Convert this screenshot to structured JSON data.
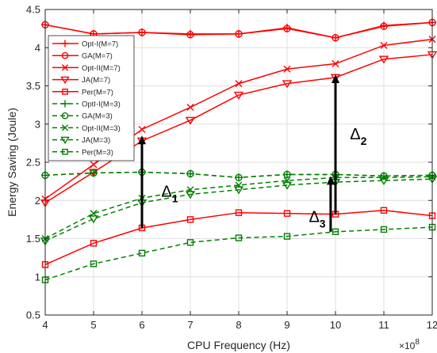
{
  "chart_data": {
    "type": "line",
    "xlabel": "CPU Frequency (Hz)",
    "ylabel": "Energy Saving (Joule)",
    "x_multiplier": "×10",
    "x_multiplier_exp": "8",
    "xlim": [
      4,
      12
    ],
    "ylim": [
      0.5,
      4.5
    ],
    "grid": true,
    "legend_position": "top-left",
    "x": [
      4,
      5,
      6,
      7,
      8,
      9,
      10,
      11,
      12
    ],
    "x_tick_labels": [
      "4",
      "5",
      "6",
      "7",
      "8",
      "9",
      "10",
      "11",
      "12"
    ],
    "y_ticks": [
      0.5,
      1,
      1.5,
      2,
      2.5,
      3,
      3.5,
      4,
      4.5
    ],
    "y_tick_labels": [
      "0.5",
      "1",
      "1.5",
      "2",
      "2.5",
      "3",
      "3.5",
      "4",
      "4.5"
    ],
    "series": [
      {
        "name": "Opt-I(M=7)",
        "color": "#ff0000",
        "dash": "solid",
        "marker": "plus",
        "values": [
          4.3,
          4.18,
          4.2,
          4.18,
          4.18,
          4.26,
          4.13,
          4.29,
          4.33
        ]
      },
      {
        "name": "GA(M=7)",
        "color": "#ff0000",
        "dash": "solid",
        "marker": "circle",
        "values": [
          4.3,
          4.18,
          4.2,
          4.17,
          4.18,
          4.25,
          4.13,
          4.28,
          4.33
        ]
      },
      {
        "name": "Opt-II(M=7)",
        "color": "#ff0000",
        "dash": "solid",
        "marker": "x",
        "values": [
          2.02,
          2.47,
          2.93,
          3.22,
          3.53,
          3.72,
          3.79,
          4.03,
          4.11
        ]
      },
      {
        "name": "JA(M=7)",
        "color": "#ff0000",
        "dash": "solid",
        "marker": "triangle-down",
        "values": [
          1.97,
          2.37,
          2.78,
          3.05,
          3.38,
          3.53,
          3.61,
          3.85,
          3.91
        ]
      },
      {
        "name": "Per(M=7)",
        "color": "#ff0000",
        "dash": "solid",
        "marker": "square",
        "values": [
          1.16,
          1.44,
          1.64,
          1.75,
          1.84,
          1.83,
          1.82,
          1.87,
          1.8
        ]
      },
      {
        "name": "OptI-I(M=3)",
        "color": "#008000",
        "dash": "dashed",
        "marker": "plus",
        "values": [
          2.33,
          2.36,
          2.37,
          2.35,
          2.3,
          2.34,
          2.34,
          2.32,
          2.33
        ]
      },
      {
        "name": "GA(M=3)",
        "color": "#008000",
        "dash": "dashed",
        "marker": "circle",
        "values": [
          2.33,
          2.36,
          2.37,
          2.35,
          2.3,
          2.34,
          2.34,
          2.32,
          2.33
        ]
      },
      {
        "name": "Opt-II(M=3)",
        "color": "#008000",
        "dash": "dashed",
        "marker": "x",
        "values": [
          1.5,
          1.83,
          2.03,
          2.14,
          2.2,
          2.26,
          2.3,
          2.3,
          2.31
        ]
      },
      {
        "name": "JA(M=3)",
        "color": "#008000",
        "dash": "dashed",
        "marker": "triangle-down",
        "values": [
          1.47,
          1.76,
          1.97,
          2.08,
          2.14,
          2.2,
          2.24,
          2.26,
          2.28
        ]
      },
      {
        "name": "Per(M=3)",
        "color": "#008000",
        "dash": "dashed",
        "marker": "square",
        "values": [
          0.96,
          1.17,
          1.31,
          1.45,
          1.51,
          1.53,
          1.59,
          1.62,
          1.65
        ]
      }
    ],
    "annotations": [
      {
        "label": "Δ",
        "subscript": "1",
        "x": 6,
        "y_from": 1.64,
        "y_to": 2.85,
        "label_x": 6.4,
        "label_y": 2.05
      },
      {
        "label": "Δ",
        "subscript": "2",
        "x": 10,
        "y_from": 1.82,
        "y_to": 3.65,
        "label_x": 10.3,
        "label_y": 2.8
      },
      {
        "label": "Δ",
        "subscript": "3",
        "x": 9.9,
        "y_from": 1.59,
        "y_to": 2.32,
        "label_x": 9.45,
        "label_y": 1.72
      }
    ]
  }
}
